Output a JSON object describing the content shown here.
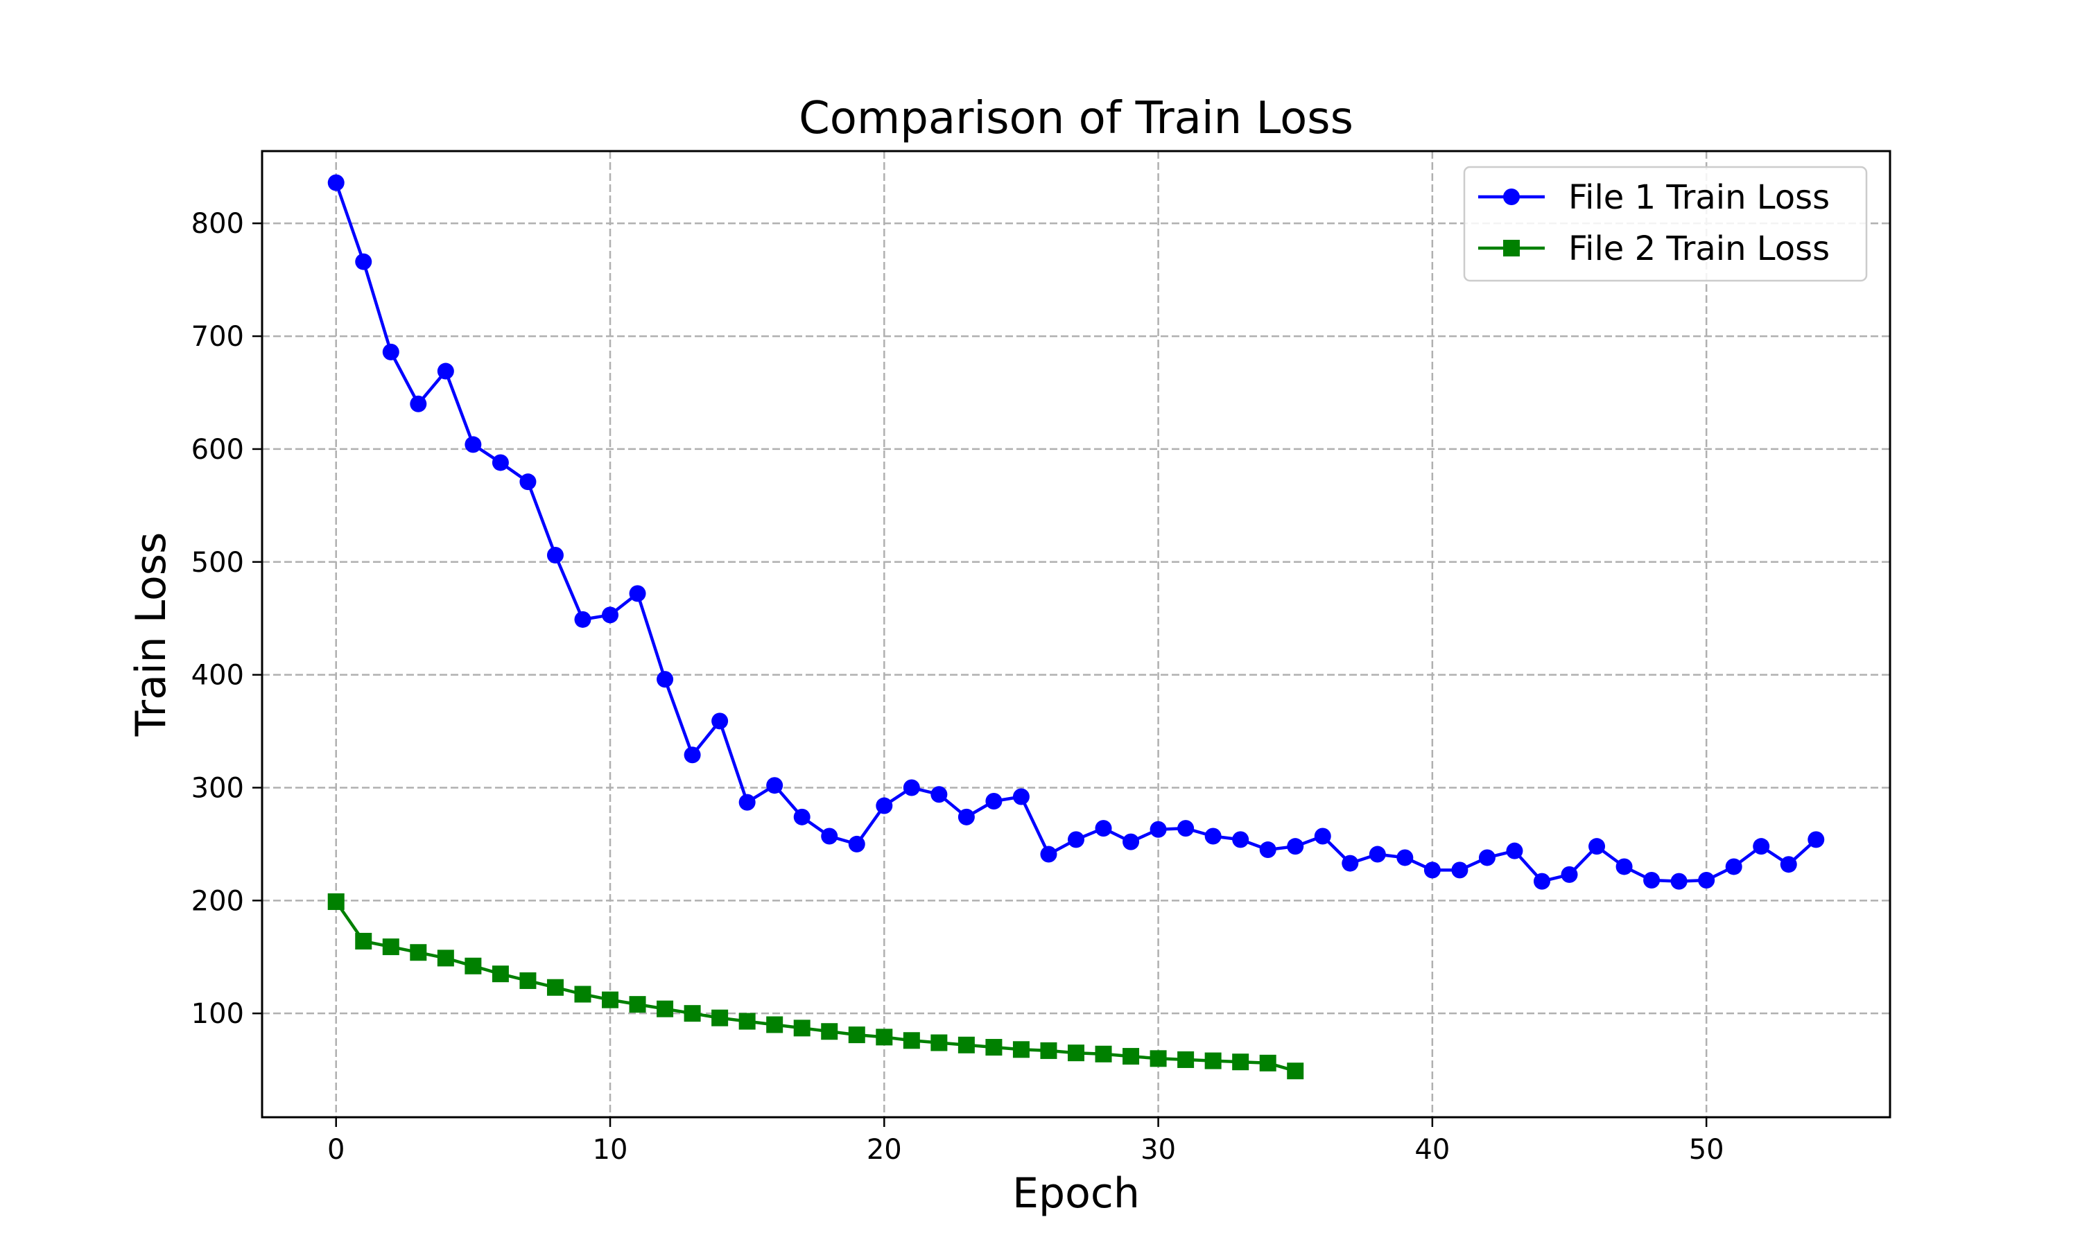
{
  "chart_data": {
    "type": "line",
    "title": "Comparison of Train Loss",
    "xlabel": "Epoch",
    "ylabel": "Train Loss",
    "xlim": [
      -2.7,
      56.7
    ],
    "ylim": [
      8,
      864
    ],
    "x_ticks": [
      0,
      10,
      20,
      30,
      40,
      50
    ],
    "y_ticks": [
      100,
      200,
      300,
      400,
      500,
      600,
      700,
      800
    ],
    "grid": true,
    "legend_position": "top-right",
    "series": [
      {
        "name": "File 1 Train Loss",
        "color": "#0000ff",
        "marker": "circle",
        "x": [
          0,
          1,
          2,
          3,
          4,
          5,
          6,
          7,
          8,
          9,
          10,
          11,
          12,
          13,
          14,
          15,
          16,
          17,
          18,
          19,
          20,
          21,
          22,
          23,
          24,
          25,
          26,
          27,
          28,
          29,
          30,
          31,
          32,
          33,
          34,
          35,
          36,
          37,
          38,
          39,
          40,
          41,
          42,
          43,
          44,
          45,
          46,
          47,
          48,
          49,
          50,
          51,
          52,
          53,
          54
        ],
        "values": [
          836,
          766,
          686,
          640,
          669,
          604,
          588,
          571,
          506,
          449,
          453,
          472,
          396,
          329,
          359,
          287,
          302,
          274,
          257,
          250,
          284,
          300,
          294,
          274,
          288,
          292,
          241,
          254,
          264,
          252,
          263,
          264,
          257,
          254,
          245,
          248,
          257,
          233,
          241,
          238,
          227,
          227,
          238,
          244,
          217,
          223,
          248,
          230,
          218,
          217,
          218,
          230,
          248,
          232,
          254
        ]
      },
      {
        "name": "File 2 Train Loss",
        "color": "#008000",
        "marker": "square",
        "x": [
          0,
          1,
          2,
          3,
          4,
          5,
          6,
          7,
          8,
          9,
          10,
          11,
          12,
          13,
          14,
          15,
          16,
          17,
          18,
          19,
          20,
          21,
          22,
          23,
          24,
          25,
          26,
          27,
          28,
          29,
          30,
          31,
          32,
          33,
          34,
          35
        ],
        "values": [
          199,
          164,
          159,
          154,
          149,
          142,
          135,
          129,
          123,
          117,
          112,
          108,
          104,
          100,
          96,
          93,
          90,
          87,
          84,
          81,
          79,
          76,
          74,
          72,
          70,
          68,
          67,
          65,
          64,
          62,
          60,
          59,
          58,
          57,
          56,
          49
        ]
      }
    ]
  }
}
